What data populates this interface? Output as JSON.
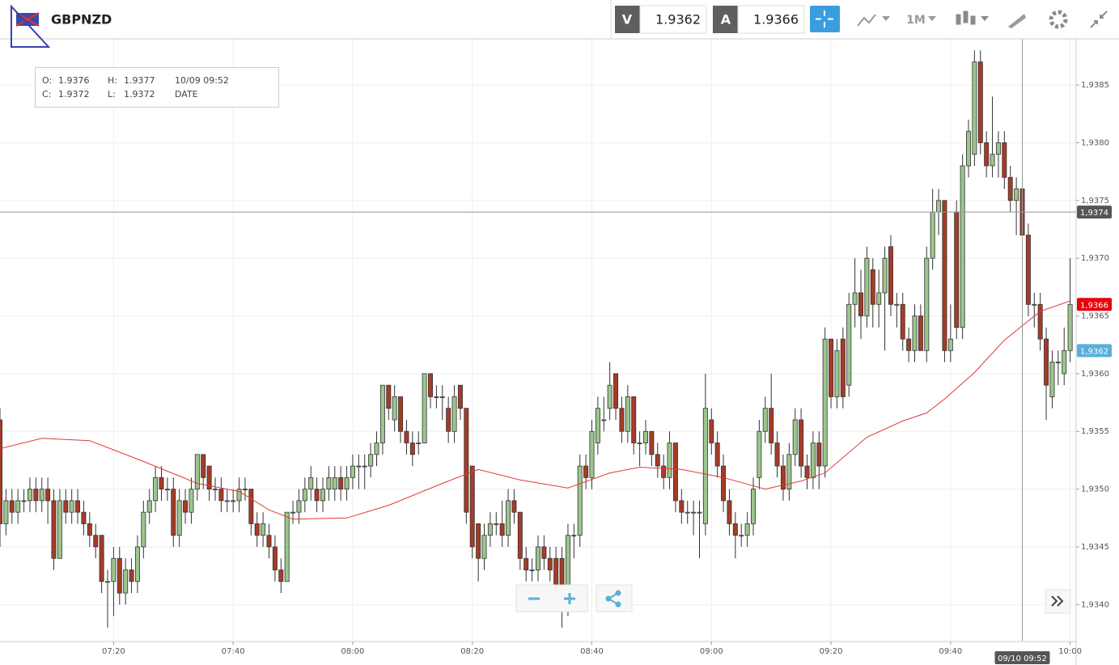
{
  "header": {
    "symbol": "GBPNZD",
    "sell": {
      "label": "V",
      "price": "1.9362"
    },
    "buy": {
      "label": "A",
      "price": "1.9366"
    },
    "timeframe": "1M"
  },
  "ohlc_box": {
    "open": {
      "label": "O:",
      "value": "1.9376"
    },
    "high": {
      "label": "H:",
      "value": "1.9377"
    },
    "close": {
      "label": "C:",
      "value": "1.9372"
    },
    "low": {
      "label": "L:",
      "value": "1.9372"
    },
    "date": "10/09 09:52",
    "date_label": "DATE"
  },
  "chart_data": {
    "type": "candlestick",
    "x": [
      "07:01",
      "07:02",
      "07:03",
      "07:04",
      "07:05",
      "07:06",
      "07:07",
      "07:08",
      "07:09",
      "07:10",
      "07:11",
      "07:12",
      "07:13",
      "07:14",
      "07:15",
      "07:16",
      "07:17",
      "07:18",
      "07:19",
      "07:20",
      "07:21",
      "07:22",
      "07:23",
      "07:24",
      "07:25",
      "07:26",
      "07:27",
      "07:28",
      "07:29",
      "07:30",
      "07:31",
      "07:32",
      "07:33",
      "07:34",
      "07:35",
      "07:36",
      "07:37",
      "07:38",
      "07:39",
      "07:40",
      "07:41",
      "07:42",
      "07:43",
      "07:44",
      "07:45",
      "07:46",
      "07:47",
      "07:48",
      "07:49",
      "07:50",
      "07:51",
      "07:52",
      "07:53",
      "07:54",
      "07:55",
      "07:56",
      "07:57",
      "07:58",
      "07:59",
      "08:00",
      "08:01",
      "08:02",
      "08:03",
      "08:04",
      "08:05",
      "08:06",
      "08:07",
      "08:08",
      "08:09",
      "08:10",
      "08:11",
      "08:12",
      "08:13",
      "08:14",
      "08:15",
      "08:16",
      "08:17",
      "08:18",
      "08:19",
      "08:20",
      "08:21",
      "08:22",
      "08:23",
      "08:24",
      "08:25",
      "08:26",
      "08:27",
      "08:28",
      "08:29",
      "08:30",
      "08:31",
      "08:32",
      "08:33",
      "08:34",
      "08:35",
      "08:36",
      "08:37",
      "08:38",
      "08:39",
      "08:40",
      "08:41",
      "08:42",
      "08:43",
      "08:44",
      "08:45",
      "08:46",
      "08:47",
      "08:48",
      "08:49",
      "08:50",
      "08:51",
      "08:52",
      "08:53",
      "08:54",
      "08:55",
      "08:56",
      "08:57",
      "08:58",
      "08:59",
      "09:00",
      "09:01",
      "09:02",
      "09:03",
      "09:04",
      "09:05",
      "09:06",
      "09:07",
      "09:08",
      "09:09",
      "09:10",
      "09:11",
      "09:12",
      "09:13",
      "09:14",
      "09:15",
      "09:16",
      "09:17",
      "09:18",
      "09:19",
      "09:20",
      "09:21",
      "09:22",
      "09:23",
      "09:24",
      "09:25",
      "09:26",
      "09:27",
      "09:28",
      "09:29",
      "09:30",
      "09:31",
      "09:32",
      "09:33",
      "09:34",
      "09:35",
      "09:36",
      "09:37",
      "09:38",
      "09:39",
      "09:40",
      "09:41",
      "09:42",
      "09:43",
      "09:44",
      "09:45",
      "09:46",
      "09:47",
      "09:48",
      "09:49",
      "09:50",
      "09:51",
      "09:52",
      "09:53",
      "09:54",
      "09:55",
      "09:56",
      "09:57",
      "09:58",
      "09:59",
      "10:00"
    ],
    "open": [
      1.9356,
      1.9347,
      1.9349,
      1.9348,
      1.9349,
      1.9349,
      1.935,
      1.9349,
      1.935,
      1.9349,
      1.9344,
      1.9349,
      1.9348,
      1.9349,
      1.9348,
      1.9347,
      1.9346,
      1.9346,
      1.9342,
      1.9342,
      1.9344,
      1.9341,
      1.9343,
      1.9342,
      1.9345,
      1.9348,
      1.9349,
      1.9351,
      1.935,
      1.935,
      1.9346,
      1.9349,
      1.9348,
      1.935,
      1.9353,
      1.9352,
      1.935,
      1.935,
      1.9349,
      1.9349,
      1.9349,
      1.935,
      1.935,
      1.9347,
      1.9346,
      1.9346,
      1.9345,
      1.9343,
      1.9342,
      1.9348,
      1.9348,
      1.9349,
      1.935,
      1.935,
      1.9349,
      1.935,
      1.935,
      1.9351,
      1.935,
      1.9351,
      1.9352,
      1.9352,
      1.9352,
      1.9353,
      1.9354,
      1.9359,
      1.9356,
      1.9358,
      1.9355,
      1.9354,
      1.9354,
      1.9354,
      1.936,
      1.9358,
      1.9358,
      1.9357,
      1.9355,
      1.9359,
      1.9357,
      1.9352,
      1.9347,
      1.9344,
      1.9346,
      1.9347,
      1.9347,
      1.9346,
      1.9349,
      1.9348,
      1.9344,
      1.9343,
      1.9343,
      1.9345,
      1.9344,
      1.9344,
      1.9344,
      1.934,
      1.9346,
      1.9346,
      1.9352,
      1.9351,
      1.9354,
      1.9356,
      1.9357,
      1.936,
      1.9357,
      1.9355,
      1.9358,
      1.9354,
      1.9354,
      1.9355,
      1.9353,
      1.9352,
      1.9351,
      1.9354,
      1.9349,
      1.9348,
      1.9348,
      1.9348,
      1.9347,
      1.9356,
      1.9354,
      1.9352,
      1.9349,
      1.9347,
      1.9346,
      1.9346,
      1.9347,
      1.9351,
      1.9355,
      1.9357,
      1.9354,
      1.9352,
      1.935,
      1.9353,
      1.9356,
      1.9352,
      1.9351,
      1.9354,
      1.9352,
      1.9363,
      1.9358,
      1.9363,
      1.9359,
      1.9366,
      1.9367,
      1.9365,
      1.9369,
      1.9366,
      1.9367,
      1.9371,
      1.9366,
      1.9366,
      1.9363,
      1.9362,
      1.9365,
      1.9362,
      1.937,
      1.9374,
      1.9375,
      1.9362,
      1.9374,
      1.9364,
      1.9378,
      1.9379,
      1.9387,
      1.938,
      1.9378,
      1.9379,
      1.938,
      1.9377,
      1.9375,
      1.9376,
      1.9372,
      1.9366,
      1.9366,
      1.9363,
      1.9358,
      1.9361,
      1.936,
      1.9362
    ],
    "high": [
      1.9357,
      1.935,
      1.935,
      1.935,
      1.935,
      1.9351,
      1.9351,
      1.9351,
      1.9351,
      1.935,
      1.935,
      1.935,
      1.935,
      1.935,
      1.9349,
      1.9348,
      1.9347,
      1.9346,
      1.9343,
      1.9345,
      1.9345,
      1.9344,
      1.9344,
      1.9346,
      1.9349,
      1.935,
      1.9352,
      1.9352,
      1.9351,
      1.9351,
      1.935,
      1.935,
      1.9351,
      1.9353,
      1.9353,
      1.9352,
      1.9351,
      1.9351,
      1.935,
      1.935,
      1.9351,
      1.9351,
      1.935,
      1.9348,
      1.9348,
      1.9347,
      1.9346,
      1.9344,
      1.9348,
      1.9349,
      1.935,
      1.9351,
      1.9352,
      1.9351,
      1.9351,
      1.9352,
      1.9352,
      1.9352,
      1.9352,
      1.9353,
      1.9353,
      1.9353,
      1.9354,
      1.9355,
      1.9359,
      1.9359,
      1.9359,
      1.9358,
      1.9356,
      1.9355,
      1.9355,
      1.936,
      1.936,
      1.9359,
      1.9359,
      1.9358,
      1.9359,
      1.9359,
      1.9357,
      1.9352,
      1.9347,
      1.9347,
      1.9348,
      1.9348,
      1.9349,
      1.935,
      1.935,
      1.9348,
      1.9345,
      1.9344,
      1.9346,
      1.9346,
      1.9345,
      1.9345,
      1.9345,
      1.9347,
      1.9347,
      1.9353,
      1.9353,
      1.9356,
      1.9358,
      1.9358,
      1.9361,
      1.936,
      1.9358,
      1.9359,
      1.9358,
      1.9355,
      1.9356,
      1.9355,
      1.9354,
      1.9353,
      1.9355,
      1.9354,
      1.935,
      1.9349,
      1.9349,
      1.9349,
      1.936,
      1.9357,
      1.9355,
      1.9353,
      1.935,
      1.9348,
      1.9347,
      1.9348,
      1.9351,
      1.9356,
      1.9358,
      1.936,
      1.9355,
      1.9353,
      1.9354,
      1.9357,
      1.9357,
      1.9353,
      1.9355,
      1.9355,
      1.9364,
      1.9363,
      1.9363,
      1.9364,
      1.9367,
      1.937,
      1.9369,
      1.9371,
      1.937,
      1.9369,
      1.9371,
      1.9372,
      1.9367,
      1.9367,
      1.9364,
      1.9366,
      1.9366,
      1.9371,
      1.9376,
      1.9376,
      1.9375,
      1.9366,
      1.9375,
      1.9379,
      1.9382,
      1.9388,
      1.9388,
      1.9381,
      1.9384,
      1.9381,
      1.9381,
      1.9378,
      1.9377,
      1.9377,
      1.9373,
      1.9367,
      1.9367,
      1.9364,
      1.9362,
      1.9362,
      1.9364,
      1.937
    ],
    "low": [
      1.9345,
      1.9346,
      1.9347,
      1.9347,
      1.9348,
      1.9348,
      1.9348,
      1.9348,
      1.9347,
      1.9343,
      1.9344,
      1.9347,
      1.9347,
      1.9347,
      1.9346,
      1.9345,
      1.9344,
      1.9341,
      1.9338,
      1.9339,
      1.934,
      1.934,
      1.9341,
      1.9341,
      1.9344,
      1.9347,
      1.9348,
      1.9349,
      1.9349,
      1.9345,
      1.9345,
      1.9347,
      1.9347,
      1.9349,
      1.935,
      1.9349,
      1.9349,
      1.9348,
      1.9348,
      1.9348,
      1.9348,
      1.9349,
      1.9346,
      1.9345,
      1.9345,
      1.9344,
      1.9342,
      1.9341,
      1.9342,
      1.9347,
      1.9347,
      1.9348,
      1.9349,
      1.9348,
      1.9348,
      1.9349,
      1.9349,
      1.9349,
      1.9349,
      1.935,
      1.935,
      1.935,
      1.9351,
      1.9352,
      1.9353,
      1.9356,
      1.9355,
      1.9354,
      1.9353,
      1.9352,
      1.9353,
      1.9354,
      1.9357,
      1.9357,
      1.9356,
      1.9354,
      1.9354,
      1.9356,
      1.9347,
      1.9344,
      1.9342,
      1.9343,
      1.9345,
      1.9346,
      1.9345,
      1.9345,
      1.9347,
      1.9343,
      1.9342,
      1.9342,
      1.9342,
      1.9343,
      1.9342,
      1.934,
      1.9338,
      1.9339,
      1.9344,
      1.9345,
      1.935,
      1.935,
      1.9353,
      1.9355,
      1.9356,
      1.9356,
      1.9354,
      1.9354,
      1.9353,
      1.9352,
      1.9353,
      1.9352,
      1.9351,
      1.935,
      1.935,
      1.9348,
      1.9347,
      1.9347,
      1.9346,
      1.9344,
      1.9346,
      1.9353,
      1.9351,
      1.9348,
      1.9346,
      1.9344,
      1.9345,
      1.9345,
      1.9346,
      1.935,
      1.9354,
      1.9353,
      1.9351,
      1.9349,
      1.9349,
      1.9352,
      1.9351,
      1.935,
      1.935,
      1.935,
      1.9351,
      1.9357,
      1.9357,
      1.9357,
      1.9358,
      1.9364,
      1.9363,
      1.9364,
      1.9364,
      1.9364,
      1.9362,
      1.9365,
      1.9364,
      1.9362,
      1.9361,
      1.9361,
      1.9362,
      1.9361,
      1.9369,
      1.9372,
      1.9361,
      1.9361,
      1.9363,
      1.9363,
      1.9377,
      1.9378,
      1.9379,
      1.9377,
      1.9377,
      1.9377,
      1.9376,
      1.9374,
      1.9372,
      1.9372,
      1.9365,
      1.9364,
      1.9362,
      1.9356,
      1.9357,
      1.9359,
      1.9359,
      1.9361
    ],
    "close": [
      1.9347,
      1.9349,
      1.9348,
      1.9349,
      1.9349,
      1.935,
      1.9349,
      1.935,
      1.9349,
      1.9344,
      1.9349,
      1.9348,
      1.9349,
      1.9348,
      1.9347,
      1.9346,
      1.9345,
      1.9342,
      1.9342,
      1.9344,
      1.9341,
      1.9343,
      1.9342,
      1.9345,
      1.9348,
      1.9349,
      1.9351,
      1.935,
      1.935,
      1.9346,
      1.9349,
      1.9348,
      1.935,
      1.9353,
      1.9351,
      1.935,
      1.935,
      1.9349,
      1.9349,
      1.9349,
      1.935,
      1.935,
      1.9347,
      1.9346,
      1.9347,
      1.9345,
      1.9343,
      1.9342,
      1.9348,
      1.9348,
      1.9349,
      1.935,
      1.9351,
      1.9349,
      1.935,
      1.9351,
      1.9351,
      1.935,
      1.9351,
      1.9352,
      1.9352,
      1.9352,
      1.9353,
      1.9354,
      1.9359,
      1.9357,
      1.9358,
      1.9355,
      1.9354,
      1.9353,
      1.9354,
      1.936,
      1.9358,
      1.9358,
      1.9358,
      1.9355,
      1.9358,
      1.9357,
      1.9348,
      1.9345,
      1.9344,
      1.9346,
      1.9347,
      1.9347,
      1.9346,
      1.9349,
      1.9348,
      1.9344,
      1.9343,
      1.9343,
      1.9345,
      1.9344,
      1.9343,
      1.9341,
      1.934,
      1.9346,
      1.9346,
      1.9352,
      1.9351,
      1.9355,
      1.9357,
      1.9356,
      1.9359,
      1.9357,
      1.9355,
      1.9358,
      1.9354,
      1.9354,
      1.9355,
      1.9353,
      1.9352,
      1.9351,
      1.9354,
      1.9349,
      1.9348,
      1.9348,
      1.9348,
      1.9348,
      1.9357,
      1.9354,
      1.9352,
      1.9349,
      1.9347,
      1.9346,
      1.9346,
      1.9347,
      1.935,
      1.9355,
      1.9357,
      1.9354,
      1.9352,
      1.935,
      1.9353,
      1.9356,
      1.9352,
      1.9351,
      1.9354,
      1.9352,
      1.9363,
      1.9358,
      1.9362,
      1.9358,
      1.9366,
      1.9367,
      1.9365,
      1.937,
      1.9366,
      1.9367,
      1.937,
      1.9366,
      1.9366,
      1.9363,
      1.9362,
      1.9365,
      1.9362,
      1.937,
      1.9374,
      1.9375,
      1.9362,
      1.9363,
      1.9364,
      1.9378,
      1.9381,
      1.9387,
      1.938,
      1.9378,
      1.9379,
      1.938,
      1.9377,
      1.9375,
      1.9376,
      1.9372,
      1.9366,
      1.9366,
      1.9363,
      1.9359,
      1.9361,
      1.9361,
      1.9362,
      1.9366
    ],
    "up_color": "#9cc68c",
    "down_color": "#a63b27",
    "xlim": [
      "07:01",
      "10:01"
    ],
    "xticks": [
      "07:20",
      "07:40",
      "08:00",
      "08:20",
      "08:40",
      "09:00",
      "09:20",
      "09:40",
      "10:00"
    ],
    "ylim": [
      1.93368,
      1.9389
    ],
    "yticks": [
      {
        "value": 1.934,
        "label": "1,9340"
      },
      {
        "value": 1.9345,
        "label": "1,9345"
      },
      {
        "value": 1.935,
        "label": "1,9350"
      },
      {
        "value": 1.9355,
        "label": "1,9355"
      },
      {
        "value": 1.936,
        "label": "1,9360"
      },
      {
        "value": 1.9365,
        "label": "1,9365"
      },
      {
        "value": 1.937,
        "label": "1,9370"
      },
      {
        "value": 1.9375,
        "label": "1,9375"
      },
      {
        "value": 1.938,
        "label": "1,9380"
      },
      {
        "value": 1.9385,
        "label": "1,9385"
      }
    ],
    "grid": true,
    "moving_average": {
      "color": "#e03a3a",
      "x": [
        "07:01",
        "07:08",
        "07:16",
        "07:25",
        "07:34",
        "07:41",
        "07:46",
        "07:50",
        "07:59",
        "08:06",
        "08:15",
        "08:21",
        "08:28",
        "08:36",
        "08:43",
        "08:48",
        "08:55",
        "09:02",
        "09:09",
        "09:15",
        "09:19",
        "09:26",
        "09:32",
        "09:36",
        "09:39",
        "09:44",
        "09:49",
        "09:55",
        "10:00"
      ],
      "values": [
        1.93535,
        1.93544,
        1.93542,
        1.93524,
        1.93505,
        1.93498,
        1.93482,
        1.93474,
        1.93475,
        1.93486,
        1.93505,
        1.93517,
        1.93508,
        1.93501,
        1.93514,
        1.93519,
        1.93517,
        1.9351,
        1.935,
        1.93507,
        1.93514,
        1.93545,
        1.93559,
        1.93566,
        1.93578,
        1.93601,
        1.93629,
        1.93654,
        1.93663
      ]
    },
    "crosshair": {
      "price": {
        "value": 1.9374,
        "label": "1,9374"
      },
      "time": {
        "value": "09:52",
        "label": "09/10 09:52"
      }
    },
    "price_tags": [
      {
        "value": 1.9366,
        "label": "1,9366",
        "color": "#e8000b"
      },
      {
        "value": 1.9362,
        "label": "1,9362",
        "color": "#5aaedb"
      }
    ]
  }
}
